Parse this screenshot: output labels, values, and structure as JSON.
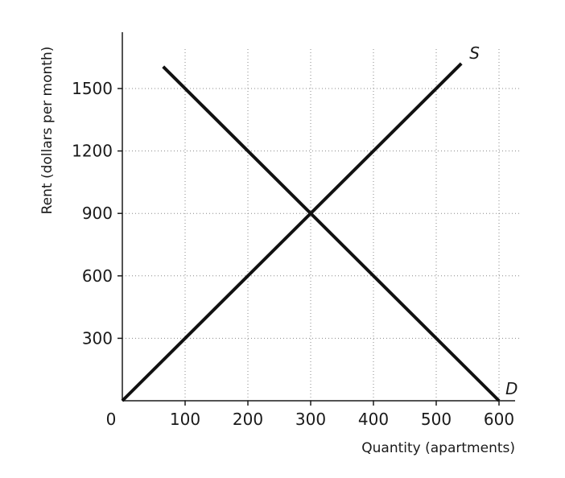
{
  "chart_data": {
    "type": "line",
    "xlabel": "Quantity (apartments)",
    "ylabel": "Rent (dollars per month)",
    "xlim": [
      0,
      600
    ],
    "ylim": [
      0,
      1500
    ],
    "x_ticks": [
      "0",
      "100",
      "200",
      "300",
      "400",
      "500",
      "600"
    ],
    "x_tick_values": [
      0,
      100,
      200,
      300,
      400,
      500,
      600
    ],
    "y_ticks": [
      "300",
      "600",
      "900",
      "1200",
      "1500"
    ],
    "y_tick_values": [
      300,
      600,
      900,
      1200,
      1500
    ],
    "grid": true,
    "series": [
      {
        "name": "S",
        "x": [
          0,
          540
        ],
        "y": [
          0,
          1620
        ]
      },
      {
        "name": "D",
        "x": [
          65,
          600
        ],
        "y": [
          1605,
          0
        ]
      }
    ]
  }
}
